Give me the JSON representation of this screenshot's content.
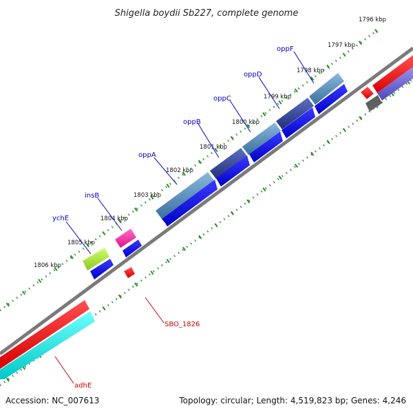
{
  "title": "Shigella boydii Sb227, complete genome",
  "accession": "Accession: NC_007613",
  "topology": "Topology: circular; Length: 4,519,823 bp; Genes: 4,246",
  "colors": {
    "backbone": "#808080",
    "tick_dot": "#3a9a3a",
    "tick_major": "#2d8a2d",
    "label_blue": "#0000cc",
    "label_red": "#cc0000",
    "gene_blue": "#0000ee",
    "operon_steel": "#4a7fb0",
    "operon_navy": "#2a3d8f",
    "gene_red": "#ff0000",
    "gene_cyan": "#00e5e5",
    "gene_lime": "#a8e030",
    "gene_magenta": "#ff2da0",
    "gene_gray": "#606060",
    "gene_lavender": "#6a60d0"
  },
  "kbp_labels": [
    "1796 kbp",
    "1797 kbp",
    "1798 kbp",
    "1799 kbp",
    "1800 kbp",
    "1801 kbp",
    "1802 kbp",
    "1803 kbp",
    "1804 kbp",
    "1805 kbp",
    "1806 kbp"
  ],
  "gene_labels": {
    "oppF": "oppF",
    "oppD": "oppD",
    "oppC": "oppC",
    "oppB": "oppB",
    "oppA": "oppA",
    "insB": "insB",
    "ychE": "ychE",
    "SBO_1826": "SBO_1826",
    "adhE": "adhE"
  }
}
